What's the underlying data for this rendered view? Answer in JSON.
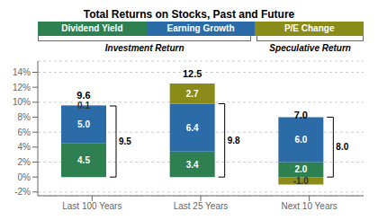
{
  "chart_data": {
    "type": "bar",
    "title": "Total Returns on Stocks, Past and Future",
    "categories": [
      "Last 100 Years",
      "Last 25 Years",
      "Next 10 Years"
    ],
    "series": [
      {
        "name": "Dividend Yield",
        "color": "#2E8050",
        "values": [
          4.5,
          3.4,
          2.0
        ],
        "value_labels": [
          "4.5",
          "3.4",
          "2.0"
        ]
      },
      {
        "name": "Earning Growth",
        "color": "#2B6CA8",
        "values": [
          5.0,
          6.4,
          6.0
        ],
        "value_labels": [
          "5.0",
          "6.4",
          "6.0"
        ]
      },
      {
        "name": "P/E Change",
        "color": "#8B8B1A",
        "values": [
          0.1,
          2.7,
          -1.0
        ],
        "value_labels": [
          "0.1",
          "2.7",
          "-1.0"
        ]
      }
    ],
    "stacked": true,
    "data_labels": true,
    "totals": {
      "values": [
        9.6,
        12.5,
        7.0
      ],
      "value_labels": [
        "9.6",
        "12.5",
        "7.0"
      ]
    },
    "investment_returns": {
      "values": [
        9.5,
        9.8,
        8.0
      ],
      "value_labels": [
        "9.5",
        "9.8",
        "8.0"
      ]
    },
    "annotations": [
      {
        "text": "Investment Return",
        "series": [
          "Dividend Yield",
          "Earning Growth"
        ]
      },
      {
        "text": "Speculative Return",
        "series": [
          "P/E Change"
        ]
      }
    ],
    "ylim": [
      -2.5,
      15.5
    ],
    "yticks": [
      {
        "value": -2,
        "label": "-2%"
      },
      {
        "value": 0,
        "label": "0%"
      },
      {
        "value": 2,
        "label": "2%"
      },
      {
        "value": 4,
        "label": "4%"
      },
      {
        "value": 6,
        "label": "6%"
      },
      {
        "value": 8,
        "label": "8%"
      },
      {
        "value": 10,
        "label": "10%"
      },
      {
        "value": 12,
        "label": "12%"
      },
      {
        "value": 14,
        "label": "14%"
      }
    ],
    "grid": true
  }
}
